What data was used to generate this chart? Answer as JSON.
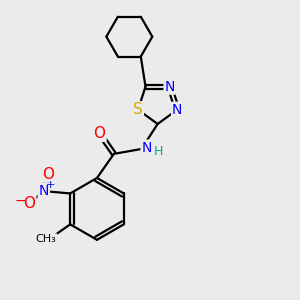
{
  "bg_color": "#ebebeb",
  "bond_color": "#000000",
  "bond_width": 1.6,
  "atom_colors": {
    "N": "#0000ff",
    "O": "#ff0000",
    "S": "#ccaa00",
    "C": "#000000",
    "H": "#00aa88"
  },
  "font_size": 10
}
